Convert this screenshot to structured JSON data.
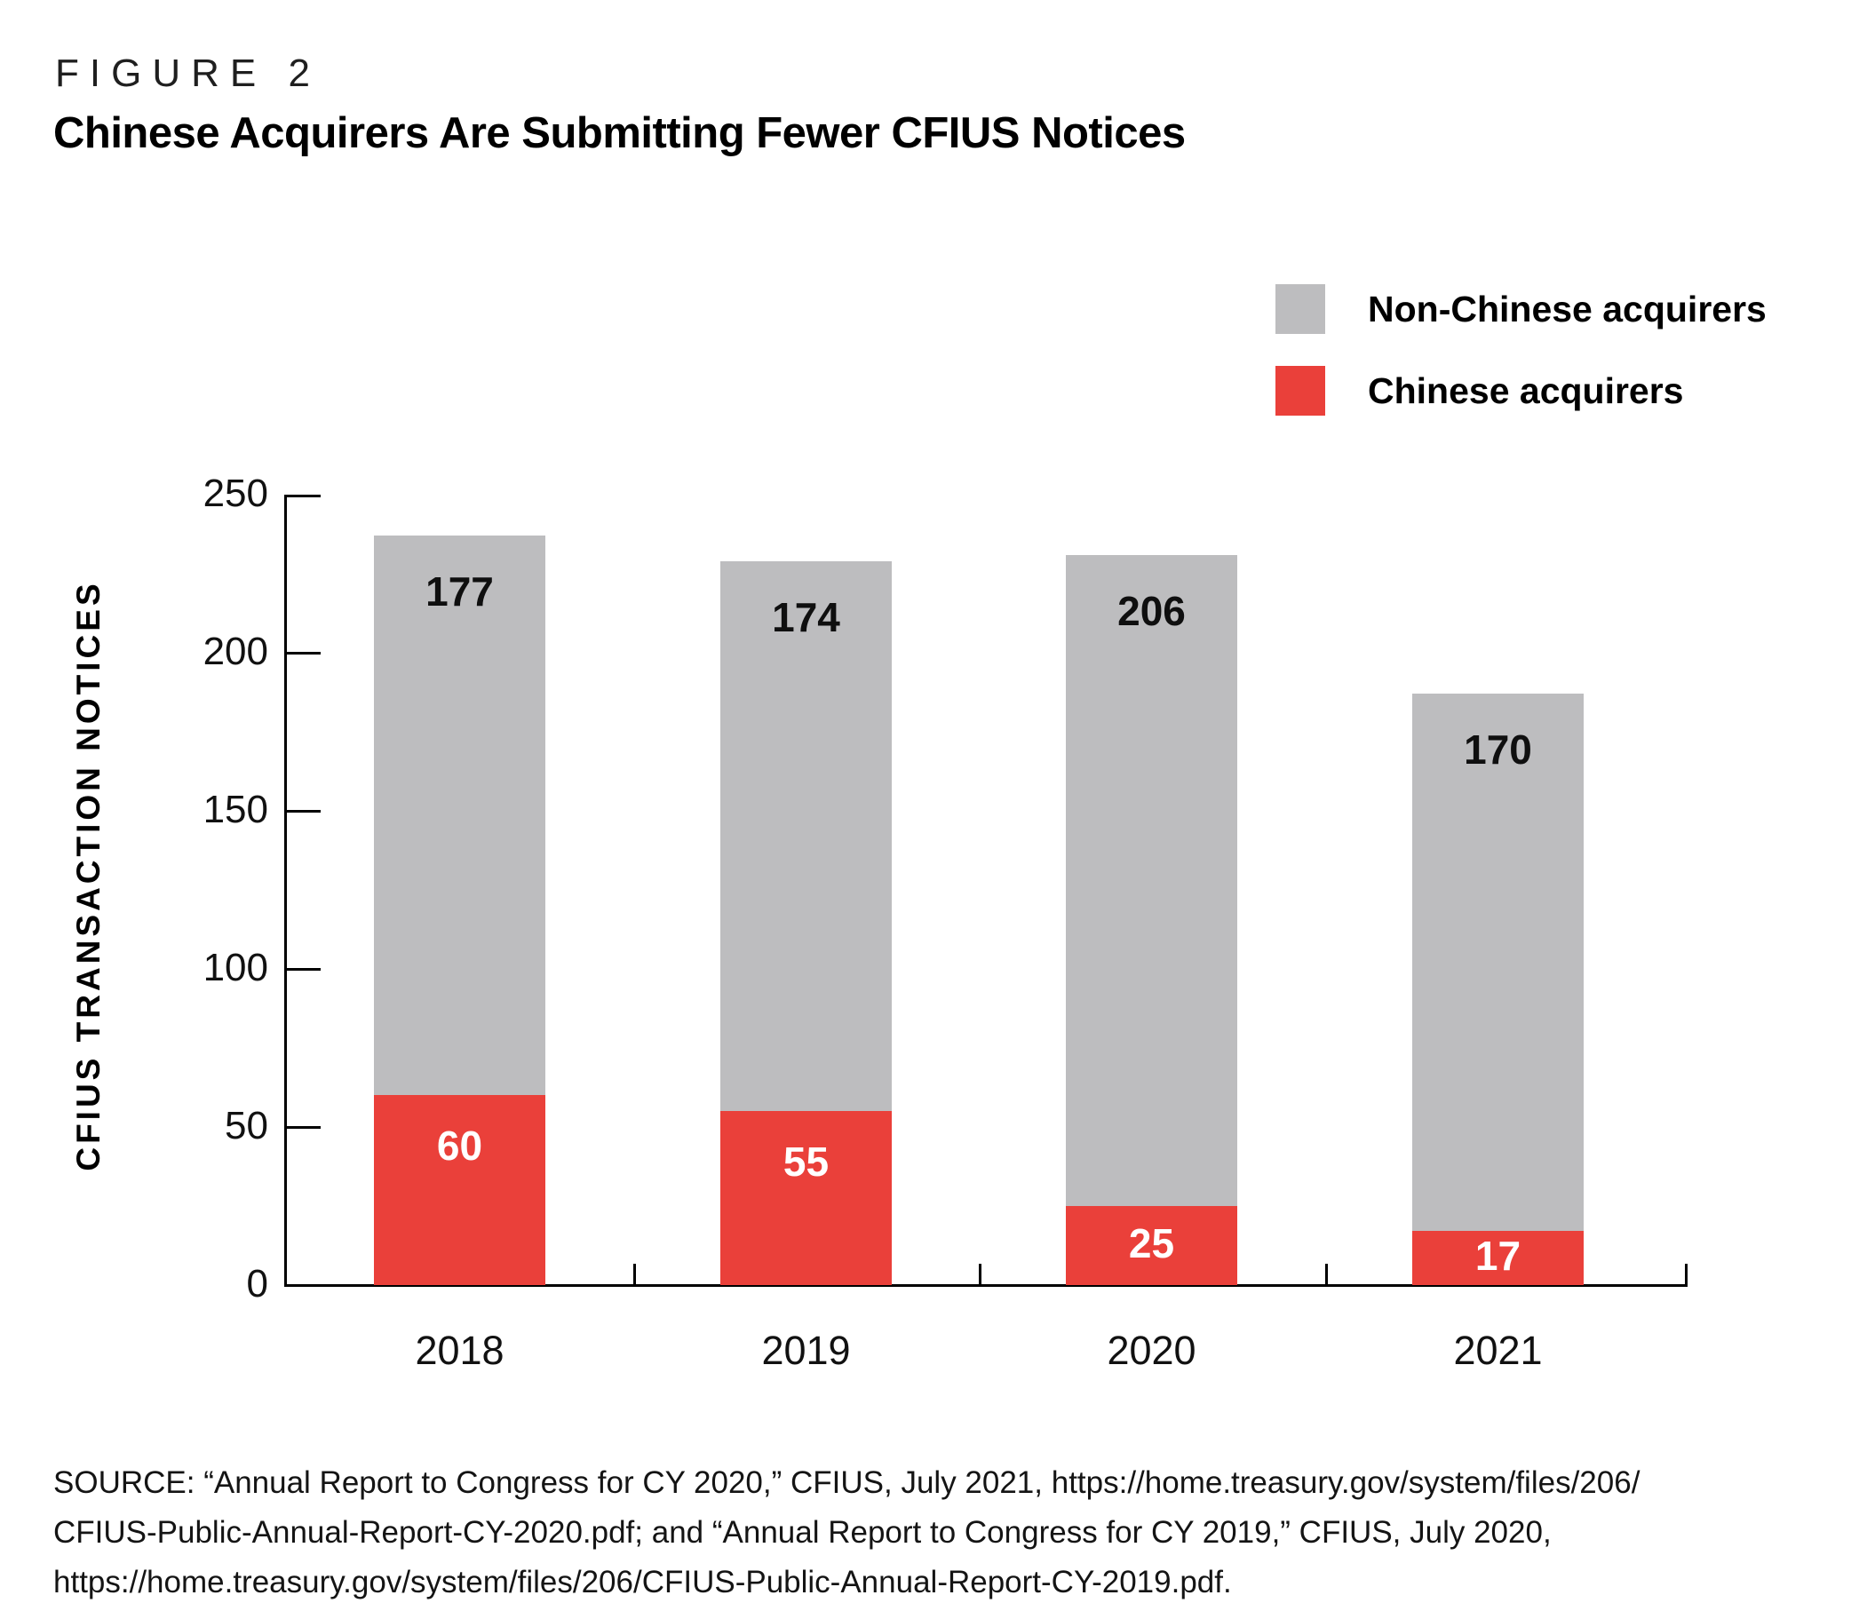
{
  "figure": {
    "kicker": "FIGURE 2",
    "title": "Chinese Acquirers Are Submitting Fewer CFIUS Notices"
  },
  "colors": {
    "chinese": "#ea403a",
    "non_chinese": "#bdbdbf",
    "axis": "#000000"
  },
  "legend": {
    "items": [
      {
        "label": "Non-Chinese acquirers",
        "color": "#bdbdbf"
      },
      {
        "label": "Chinese acquirers",
        "color": "#ea403a"
      }
    ]
  },
  "chart_data": {
    "type": "bar",
    "stacked": true,
    "title": "Chinese Acquirers Are Submitting Fewer CFIUS Notices",
    "categories": [
      "2018",
      "2019",
      "2020",
      "2021"
    ],
    "series": [
      {
        "name": "Chinese acquirers",
        "color": "#ea403a",
        "values": [
          60,
          55,
          25,
          17
        ]
      },
      {
        "name": "Non-Chinese acquirers",
        "color": "#bdbdbf",
        "values": [
          177,
          174,
          206,
          170
        ]
      }
    ],
    "totals": [
      237,
      229,
      231,
      187
    ],
    "xlabel": "",
    "ylabel": "CFIUS TRANSACTION NOTICES",
    "yticks": [
      0,
      50,
      100,
      150,
      200,
      250
    ],
    "ylim": [
      0,
      250
    ],
    "grid": false,
    "legend_position": "top-right"
  },
  "source": {
    "lines": [
      "SOURCE: “Annual Report to Congress for CY 2020,” CFIUS, July 2021, https://home.treasury.gov/system/files/206/",
      "CFIUS-Public-Annual-Report-CY-2020.pdf; and “Annual Report to Congress for CY 2019,” CFIUS, July 2020,",
      "https://home.treasury.gov/system/files/206/CFIUS-Public-Annual-Report-CY-2019.pdf."
    ]
  }
}
